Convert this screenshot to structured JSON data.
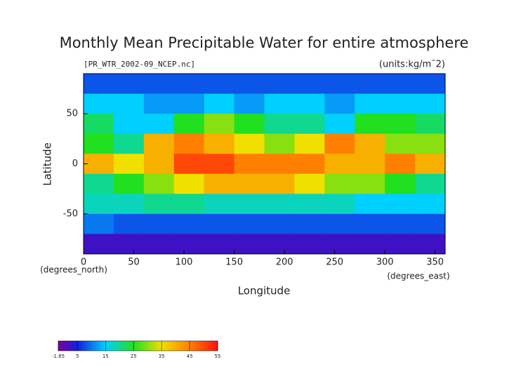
{
  "chart_data": {
    "type": "heatmap",
    "title": "Monthly Mean Precipitable Water for entire atmosphere",
    "subtitle": "[PR_WTR_2002-09_NCEP.nc]",
    "units": "(units:kg/m¯2)",
    "y_label": "Latitude",
    "y_unit_label": "(degrees_north)",
    "x_label": "Longitude",
    "x_unit_label": "(degrees_east)",
    "xlim": [
      0,
      360
    ],
    "xticks": [
      0,
      50,
      100,
      150,
      200,
      250,
      300,
      350
    ],
    "ylim": [
      -90,
      90
    ],
    "yticks": [
      -50,
      0,
      50
    ],
    "x": [
      15,
      45,
      75,
      105,
      135,
      165,
      195,
      225,
      255,
      285,
      315,
      345
    ],
    "y": [
      80,
      60,
      40,
      20,
      0,
      -20,
      -40,
      -60,
      -80
    ],
    "z": [
      [
        8,
        8,
        8,
        8,
        8,
        8,
        8,
        8,
        8,
        8,
        8,
        8
      ],
      [
        15,
        15,
        12,
        12,
        15,
        12,
        15,
        15,
        12,
        15,
        15,
        15
      ],
      [
        22,
        15,
        15,
        25,
        30,
        25,
        20,
        20,
        15,
        25,
        25,
        22
      ],
      [
        25,
        20,
        40,
        45,
        40,
        35,
        30,
        35,
        45,
        40,
        30,
        30
      ],
      [
        40,
        35,
        40,
        50,
        50,
        45,
        45,
        45,
        40,
        40,
        45,
        40
      ],
      [
        20,
        25,
        30,
        35,
        40,
        40,
        40,
        35,
        30,
        30,
        25,
        20
      ],
      [
        18,
        18,
        20,
        20,
        18,
        18,
        18,
        18,
        18,
        15,
        15,
        15
      ],
      [
        10,
        8,
        8,
        8,
        8,
        8,
        8,
        8,
        8,
        8,
        8,
        8
      ],
      [
        2,
        2,
        2,
        2,
        2,
        2,
        2,
        2,
        2,
        2,
        2,
        2
      ]
    ],
    "colorbar": {
      "lim": [
        -1.85,
        55
      ],
      "ticks": [
        -1.85,
        5,
        15,
        25,
        35,
        45,
        55
      ],
      "colors": [
        "#7a00a0",
        "#1020e0",
        "#00d0ff",
        "#20e020",
        "#f0e000",
        "#ff8000",
        "#ff1010"
      ]
    }
  }
}
